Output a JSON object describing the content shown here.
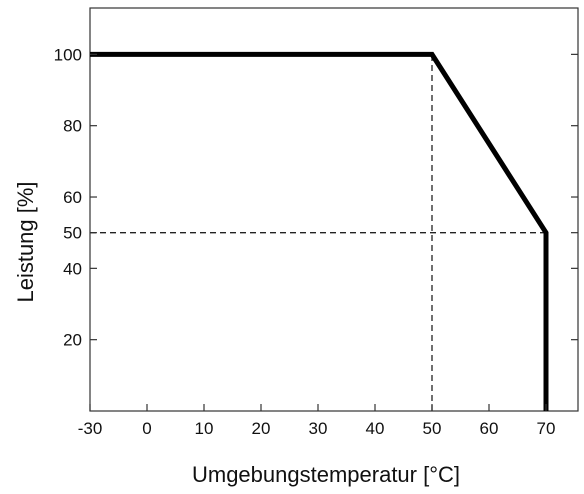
{
  "chart_data": {
    "type": "line",
    "title": "",
    "xlabel": "Umgebungstemperatur [°C]",
    "ylabel": "Leistung [%]",
    "xlim": [
      -30,
      71.5
    ],
    "ylim": [
      0,
      113
    ],
    "xticks": [
      -30,
      0,
      10,
      20,
      30,
      40,
      50,
      60,
      70
    ],
    "xtick_labels": [
      "-30",
      "0",
      "10",
      "20",
      "30",
      "40",
      "50",
      "60",
      "70"
    ],
    "yticks": [
      20,
      40,
      50,
      60,
      80,
      100
    ],
    "ytick_labels": [
      "20",
      "40",
      "50",
      "60",
      "80",
      "100"
    ],
    "grid": false,
    "legend": "none",
    "series": [
      {
        "x": [
          -30,
          50,
          70,
          70
        ],
        "y": [
          100,
          100,
          50,
          0
        ]
      }
    ],
    "reference_lines": [
      {
        "orientation": "vertical",
        "x": 50,
        "y_from": 0,
        "y_to": 100,
        "style": "dashed"
      },
      {
        "orientation": "horizontal",
        "y": 50,
        "x_from": -30,
        "x_to": 70,
        "style": "dashed"
      }
    ],
    "colors": {
      "line": "#000000",
      "axis": "#333333"
    }
  }
}
